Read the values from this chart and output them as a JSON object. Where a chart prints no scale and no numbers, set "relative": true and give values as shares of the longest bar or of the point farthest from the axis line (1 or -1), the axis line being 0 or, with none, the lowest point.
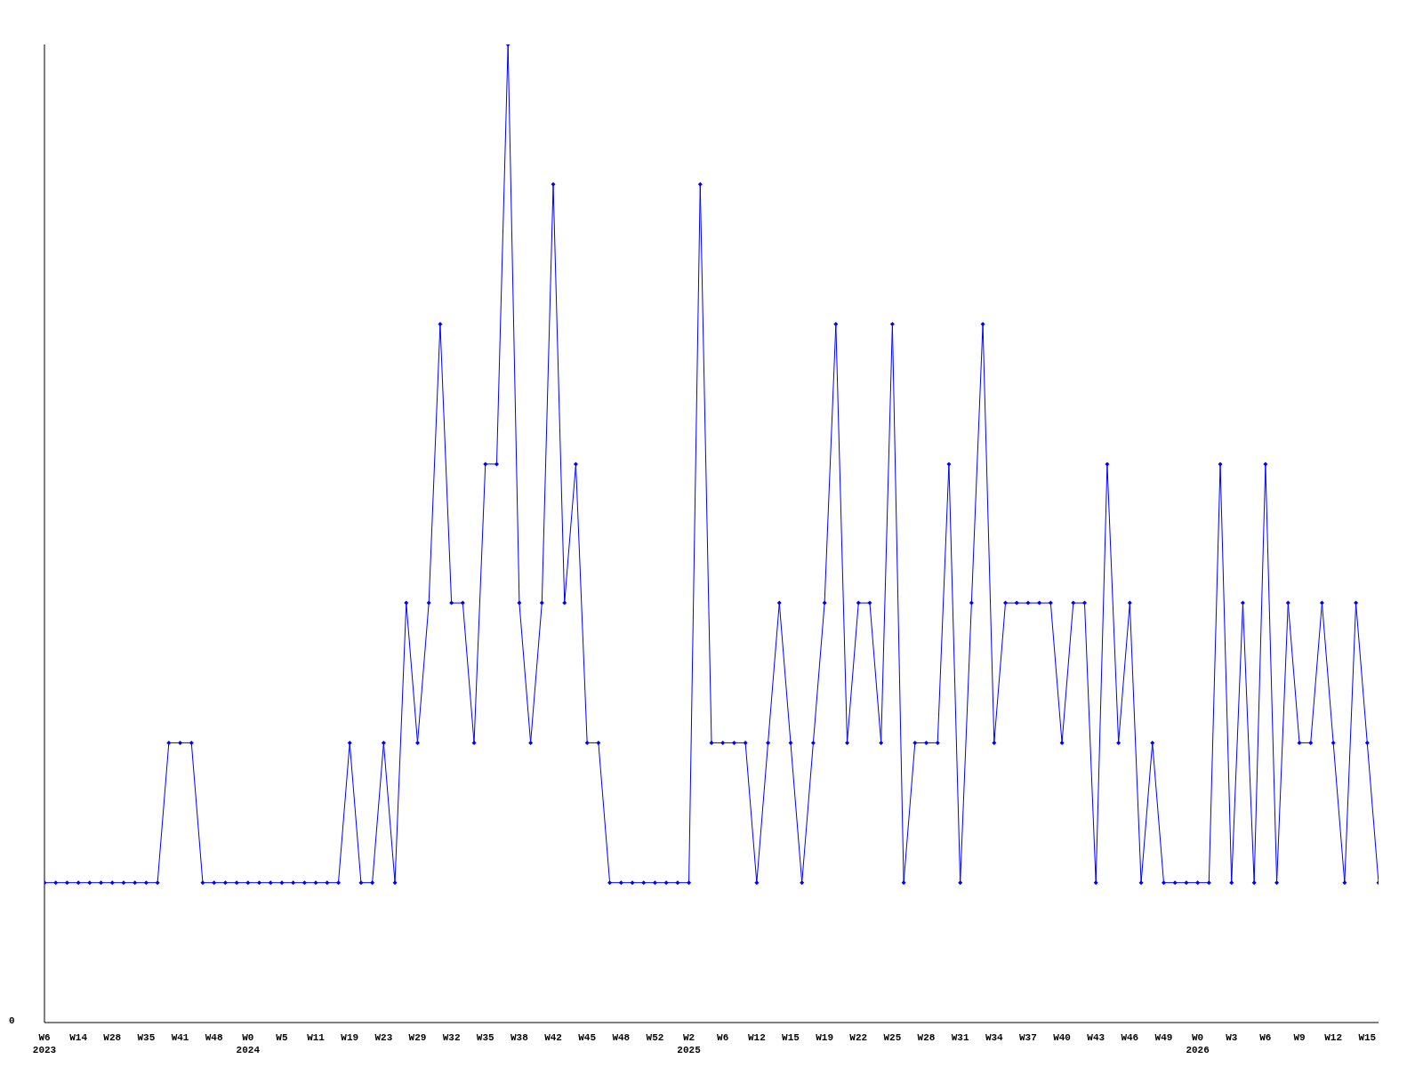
{
  "chart_data": {
    "type": "line",
    "relative": true,
    "marker": "diamond",
    "line_style": "solid",
    "annotations": [
      "0"
    ],
    "categories": [
      "W6\n2023",
      null,
      null,
      "W14",
      null,
      null,
      "W28",
      null,
      null,
      "W35",
      null,
      null,
      "W41",
      null,
      null,
      "W48",
      null,
      null,
      "W0\n2024",
      null,
      null,
      "W5",
      null,
      null,
      "W11",
      null,
      null,
      "W19",
      null,
      null,
      "W23",
      null,
      null,
      "W29",
      null,
      null,
      "W32",
      null,
      null,
      "W35",
      null,
      null,
      "W38",
      null,
      null,
      "W42",
      null,
      null,
      "W45",
      null,
      null,
      "W48",
      null,
      null,
      "W52",
      null,
      null,
      "W2\n2025",
      null,
      null,
      "W6",
      null,
      null,
      "W12",
      null,
      null,
      "W15",
      null,
      null,
      "W19",
      null,
      null,
      "W22",
      null,
      null,
      "W25",
      null,
      null,
      "W28",
      null,
      null,
      "W31",
      null,
      null,
      "W34",
      null,
      null,
      "W37",
      null,
      null,
      "W40",
      null,
      null,
      "W43",
      null,
      null,
      "W46",
      null,
      null,
      "W49",
      null,
      null,
      "W0\n2026",
      null,
      null,
      "W3",
      null,
      null,
      "W6",
      null,
      null,
      "W9",
      null,
      null,
      "W12",
      null,
      null,
      "W15",
      null
    ],
    "series": [
      {
        "color": "#0000ff",
        "values": [
          0.143,
          0.143,
          0.143,
          0.143,
          0.143,
          0.143,
          0.143,
          0.143,
          0.143,
          0.143,
          0.143,
          0.286,
          0.286,
          0.286,
          0.143,
          0.143,
          0.143,
          0.143,
          0.143,
          0.143,
          0.143,
          0.143,
          0.143,
          0.143,
          0.143,
          0.143,
          0.143,
          0.286,
          0.143,
          0.143,
          0.286,
          0.143,
          0.429,
          0.286,
          0.429,
          0.714,
          0.429,
          0.429,
          0.286,
          0.571,
          0.571,
          1,
          0.429,
          0.286,
          0.429,
          0.857,
          0.429,
          0.571,
          0.286,
          0.286,
          0.143,
          0.143,
          0.143,
          0.143,
          0.143,
          0.143,
          0.143,
          0.143,
          0.857,
          0.286,
          0.286,
          0.286,
          0.286,
          0.143,
          0.286,
          0.429,
          0.286,
          0.143,
          0.286,
          0.429,
          0.714,
          0.286,
          0.429,
          0.429,
          0.286,
          0.714,
          0.143,
          0.286,
          0.286,
          0.286,
          0.571,
          0.143,
          0.429,
          0.714,
          0.286,
          0.429,
          0.429,
          0.429,
          0.429,
          0.429,
          0.286,
          0.429,
          0.429,
          0.143,
          0.571,
          0.286,
          0.429,
          0.143,
          0.286,
          0.143,
          0.143,
          0.143,
          0.143,
          0.143,
          0.571,
          0.143,
          0.429,
          0.143,
          0.571,
          0.143,
          0.429,
          0.286,
          0.286,
          0.429,
          0.286,
          0.143,
          0.429,
          0.286,
          0.143
        ]
      }
    ]
  }
}
